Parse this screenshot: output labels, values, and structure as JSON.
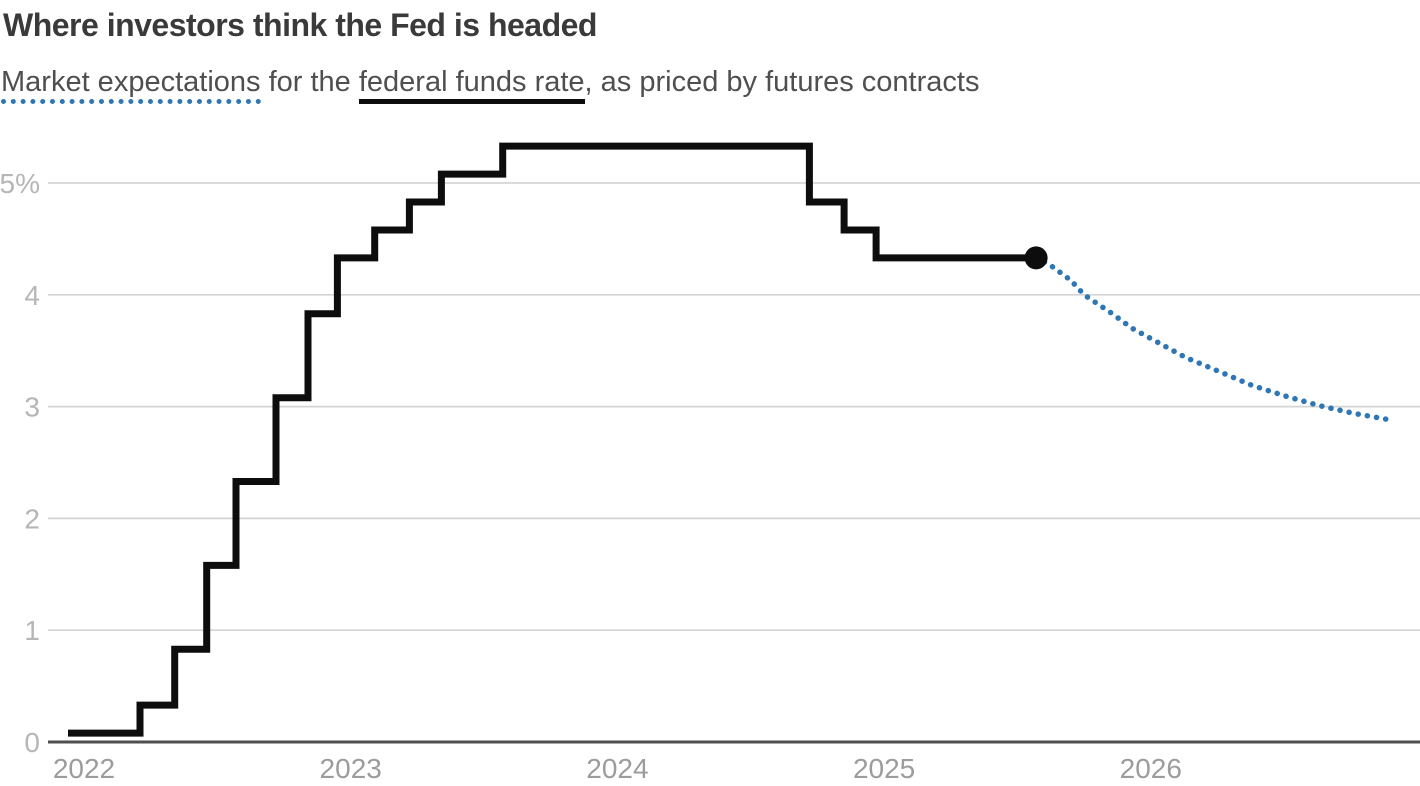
{
  "header": {
    "title": "Where investors think the Fed is headed",
    "subtitle_segments": {
      "market_expectations": "Market expectations",
      "middle": " for the ",
      "federal_funds_rate": "federal funds rate",
      "tail": ", as priced by futures contracts"
    }
  },
  "colors": {
    "title": "#3a3a3a",
    "subtitle": "#4f4f4f",
    "history_line": "#0d0d0d",
    "projection_dotted": "#2f76b5",
    "gridline": "#d4d4d4",
    "baseline": "#4f4f4f",
    "y_tick_label": "#b6b6b6",
    "x_tick_label": "#9c9c9c"
  },
  "chart_data": {
    "type": "line",
    "title": "Where investors think the Fed is headed",
    "subtitle": "Market expectations for the federal funds rate, as priced by futures contracts",
    "x_unit": "year (decimal)",
    "y_unit": "percent",
    "xlim": [
      2021.87,
      2027.01
    ],
    "ylim": [
      0,
      5.45
    ],
    "grid": "horizontal gridlines on, vertical off",
    "legend": "inline in subtitle: dotted blue underline = market expectations (futures), solid black underline = federal funds rate (history)",
    "x_ticks": [
      {
        "x": 2022,
        "label": "2022"
      },
      {
        "x": 2023,
        "label": "2023"
      },
      {
        "x": 2024,
        "label": "2024"
      },
      {
        "x": 2025,
        "label": "2025"
      },
      {
        "x": 2026,
        "label": "2026"
      }
    ],
    "y_ticks": [
      {
        "v": 0,
        "label": "0"
      },
      {
        "v": 1,
        "label": "1"
      },
      {
        "v": 2,
        "label": "2"
      },
      {
        "v": 3,
        "label": "3"
      },
      {
        "v": 4,
        "label": "4"
      },
      {
        "v": 5,
        "label": "5%"
      }
    ],
    "series": [
      {
        "name": "federal funds rate (historical, step line)",
        "render": "step",
        "style": "solid",
        "color_key": "history_line",
        "points_note": "each pair = [decimal year of rate change, new effective rate %]",
        "points": [
          [
            2021.94,
            0.08
          ],
          [
            2022.21,
            0.33
          ],
          [
            2022.34,
            0.83
          ],
          [
            2022.46,
            1.58
          ],
          [
            2022.57,
            2.33
          ],
          [
            2022.72,
            3.08
          ],
          [
            2022.84,
            3.83
          ],
          [
            2022.95,
            4.33
          ],
          [
            2023.09,
            4.58
          ],
          [
            2023.22,
            4.83
          ],
          [
            2023.34,
            5.08
          ],
          [
            2023.57,
            5.33
          ],
          [
            2024.72,
            4.83
          ],
          [
            2024.85,
            4.58
          ],
          [
            2024.97,
            4.33
          ],
          [
            2025.57,
            4.33
          ]
        ]
      },
      {
        "name": "market expectations (futures-implied projection, dotted)",
        "render": "curve",
        "style": "dotted",
        "color_key": "projection_dotted",
        "points": [
          [
            2025.57,
            4.33
          ],
          [
            2025.62,
            4.27
          ],
          [
            2025.7,
            4.13
          ],
          [
            2025.75,
            4.0
          ],
          [
            2025.85,
            3.84
          ],
          [
            2025.93,
            3.7
          ],
          [
            2026.03,
            3.57
          ],
          [
            2026.13,
            3.44
          ],
          [
            2026.26,
            3.31
          ],
          [
            2026.38,
            3.19
          ],
          [
            2026.51,
            3.09
          ],
          [
            2026.63,
            3.01
          ],
          [
            2026.76,
            2.94
          ],
          [
            2026.9,
            2.88
          ]
        ]
      }
    ],
    "endpoint_marker": {
      "x": 2025.57,
      "y": 4.33
    }
  }
}
